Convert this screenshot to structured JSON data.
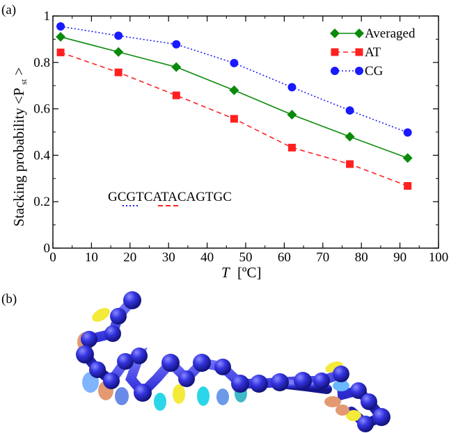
{
  "panels": {
    "a_label": "(a)",
    "b_label": "(b)"
  },
  "chart_data": {
    "type": "line",
    "title": "",
    "xlabel_main": "T",
    "xlabel_unit": "[ºC]",
    "ylabel_main": "Stacking probability <P",
    "ylabel_sub": "st",
    "ylabel_end": ">",
    "xlim": [
      0,
      100
    ],
    "ylim": [
      0,
      1
    ],
    "xticks": [
      0,
      10,
      20,
      30,
      40,
      50,
      60,
      70,
      80,
      90,
      100
    ],
    "yticks": [
      0,
      0.2,
      0.4,
      0.6,
      0.8,
      1
    ],
    "xtick_labels": [
      "0",
      "10",
      "20",
      "30",
      "40",
      "50",
      "60",
      "70",
      "80",
      "90",
      "100"
    ],
    "ytick_labels": [
      "0",
      "0.2",
      "0.4",
      "0.6",
      "0.8",
      "1"
    ],
    "legend_placement": "top-right",
    "grid": false,
    "x": [
      2,
      17,
      32,
      47,
      62,
      77,
      92
    ],
    "series": [
      {
        "name": "Averaged",
        "color": "#0a8a0a",
        "marker": "diamond",
        "line": "solid",
        "values": [
          0.91,
          0.845,
          0.78,
          0.68,
          0.575,
          0.48,
          0.388
        ]
      },
      {
        "name": "AT",
        "color": "#ff2020",
        "marker": "square",
        "line": "dashed",
        "values": [
          0.843,
          0.757,
          0.658,
          0.557,
          0.433,
          0.362,
          0.268
        ]
      },
      {
        "name": "CG",
        "color": "#1a1aff",
        "marker": "circle",
        "line": "dotted",
        "values": [
          0.955,
          0.915,
          0.878,
          0.797,
          0.693,
          0.593,
          0.498
        ]
      }
    ],
    "annotation": "GCGTCATACAGTGC"
  },
  "structure_image": {
    "description_color_backbone": "#3a3ad8"
  }
}
